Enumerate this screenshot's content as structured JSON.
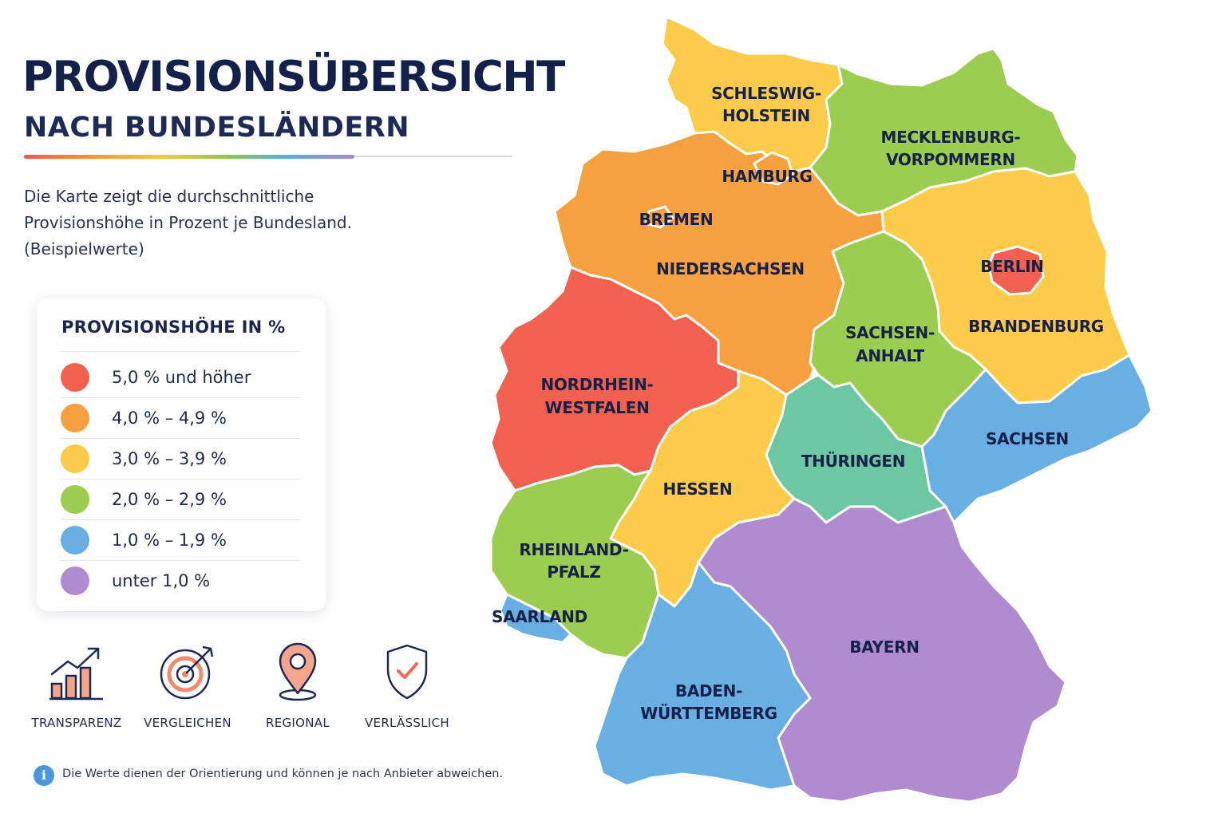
{
  "header": {
    "title": "PROVISIONSÜBERSICHT",
    "subtitle": "NACH BUNDESLÄNDERN"
  },
  "description": {
    "line1": "Die Karte zeigt die durchschnittliche",
    "line2": "Provisionshöhe in Prozent je Bundesland.",
    "line3": "(Beispielwerte)"
  },
  "legend": {
    "title": "PROVISIONSHÖHE IN %",
    "items": [
      {
        "label": "5,0 % und höher",
        "color": "#f26150"
      },
      {
        "label": "4,0 % – 4,9 %",
        "color": "#f7a040"
      },
      {
        "label": "3,0 % – 3,9 %",
        "color": "#fccb4a"
      },
      {
        "label": "2,0 % – 2,9 %",
        "color": "#9ccc50"
      },
      {
        "label": "1,0 % – 1,9 %",
        "color": "#6aafe3"
      },
      {
        "label": "unter 1,0 %",
        "color": "#b08bd0"
      }
    ]
  },
  "features": [
    {
      "label": "TRANSPARENZ",
      "icon": "bar-chart-growth-icon"
    },
    {
      "label": "VERGLEICHEN",
      "icon": "target-arrow-icon"
    },
    {
      "label": "REGIONAL",
      "icon": "location-pin-icon"
    },
    {
      "label": "VERLÄSSLICH",
      "icon": "shield-check-icon"
    }
  ],
  "note": {
    "icon": "info-icon",
    "text": "Die Werte dienen der Orientierung und können je nach Anbieter abweichen."
  },
  "map": {
    "states": [
      {
        "id": "schleswig-holstein",
        "label_lines": [
          "SCHLESWIG-",
          "HOLSTEIN"
        ],
        "color": "#fccb4a"
      },
      {
        "id": "hamburg",
        "label_lines": [
          "HAMBURG"
        ],
        "color": "#f7a040"
      },
      {
        "id": "mecklenburg-vorpommern",
        "label_lines": [
          "MECKLENBURG-",
          "VORPOMMERN"
        ],
        "color": "#9ccc50"
      },
      {
        "id": "bremen",
        "label_lines": [
          "BREMEN"
        ],
        "color": "#f7a040"
      },
      {
        "id": "niedersachsen",
        "label_lines": [
          "NIEDERSACHSEN"
        ],
        "color": "#f7a040"
      },
      {
        "id": "berlin",
        "label_lines": [
          "BERLIN"
        ],
        "color": "#f26150"
      },
      {
        "id": "brandenburg",
        "label_lines": [
          "BRANDENBURG"
        ],
        "color": "#fccb4a"
      },
      {
        "id": "sachsen-anhalt",
        "label_lines": [
          "SACHSEN-",
          "ANHALT"
        ],
        "color": "#9ccc50"
      },
      {
        "id": "nordrhein-westfalen",
        "label_lines": [
          "NORDRHEIN-",
          "WESTFALEN"
        ],
        "color": "#f26150"
      },
      {
        "id": "sachsen",
        "label_lines": [
          "SACHSEN"
        ],
        "color": "#6aafe3"
      },
      {
        "id": "thueringen",
        "label_lines": [
          "THÜRINGEN"
        ],
        "color": "#6cc8a2"
      },
      {
        "id": "hessen",
        "label_lines": [
          "HESSEN"
        ],
        "color": "#fccb4a"
      },
      {
        "id": "rheinland-pfalz",
        "label_lines": [
          "RHEINLAND-",
          "PFALZ"
        ],
        "color": "#9ccc50"
      },
      {
        "id": "saarland",
        "label_lines": [
          "SAARLAND"
        ],
        "color": "#6aafe3"
      },
      {
        "id": "bayern",
        "label_lines": [
          "BAYERN"
        ],
        "color": "#b08bd0"
      },
      {
        "id": "baden-wuerttemberg",
        "label_lines": [
          "BADEN-",
          "WÜRTTEMBERG"
        ],
        "color": "#6aafe3"
      }
    ]
  }
}
